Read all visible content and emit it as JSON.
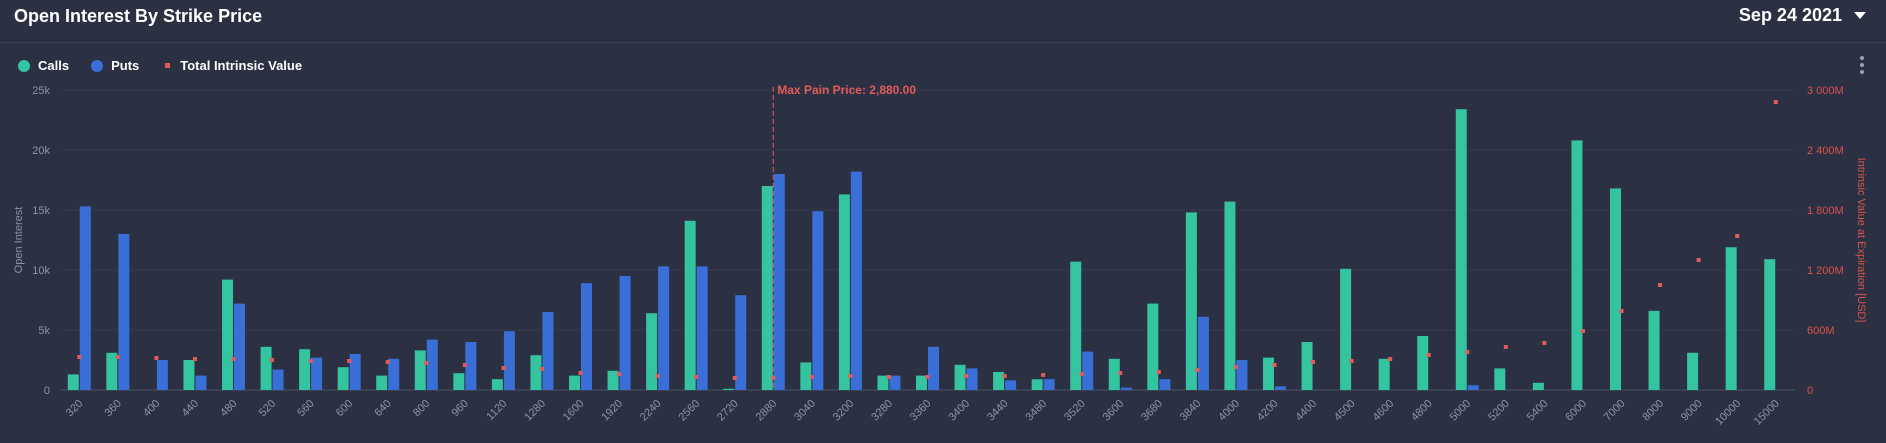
{
  "header": {
    "title": "Open Interest By Strike Price",
    "expiry_selected": "Sep 24 2021"
  },
  "legend": {
    "calls": "Calls",
    "puts": "Puts",
    "intrinsic": "Total Intrinsic Value"
  },
  "colors": {
    "calls": "#35c4a0",
    "puts": "#3a6fd8",
    "intrinsic": "#e35a5a",
    "max_pain": "#e35a5a"
  },
  "chart_data": {
    "type": "bar",
    "categories": [
      "320",
      "360",
      "400",
      "440",
      "480",
      "520",
      "560",
      "600",
      "640",
      "800",
      "960",
      "1120",
      "1280",
      "1600",
      "1920",
      "2240",
      "2560",
      "2720",
      "2880",
      "3040",
      "3200",
      "3280",
      "3360",
      "3400",
      "3440",
      "3480",
      "3520",
      "3600",
      "3680",
      "3840",
      "4000",
      "4200",
      "4400",
      "4500",
      "4600",
      "4800",
      "5000",
      "5200",
      "5400",
      "6000",
      "7000",
      "8000",
      "9000",
      "10000",
      "15000"
    ],
    "series": [
      {
        "name": "Calls",
        "axis": "left",
        "values": [
          1300,
          3100,
          0,
          2500,
          9200,
          3600,
          3400,
          1900,
          1200,
          3300,
          1400,
          900,
          2900,
          1200,
          1600,
          6400,
          14100,
          100,
          17000,
          2300,
          16300,
          1200,
          1200,
          2100,
          1500,
          900,
          10700,
          2600,
          7200,
          14800,
          15700,
          2700,
          4000,
          10100,
          2600,
          4500,
          23400,
          1800,
          600,
          20800,
          16800,
          6600,
          3100,
          11900,
          10900
        ]
      },
      {
        "name": "Puts",
        "axis": "left",
        "values": [
          15300,
          13000,
          2500,
          1200,
          7200,
          1700,
          2700,
          3000,
          2600,
          4200,
          4000,
          4900,
          6500,
          8900,
          9500,
          10300,
          10300,
          7900,
          18000,
          14900,
          18200,
          1200,
          3600,
          1800,
          800,
          900,
          3200,
          200,
          900,
          6100,
          2500,
          300,
          0,
          0,
          0,
          0,
          400,
          0,
          0,
          0,
          0,
          0,
          0,
          0,
          0
        ]
      },
      {
        "name": "Total Intrinsic Value",
        "axis": "right",
        "type": "scatter",
        "values": [
          330,
          330,
          320,
          310,
          310,
          300,
          290,
          290,
          280,
          270,
          250,
          220,
          210,
          170,
          160,
          140,
          130,
          120,
          120,
          130,
          140,
          130,
          130,
          140,
          140,
          150,
          160,
          170,
          180,
          200,
          230,
          250,
          280,
          290,
          310,
          350,
          380,
          430,
          470,
          590,
          790,
          1050,
          1300,
          1540,
          2880
        ]
      }
    ],
    "y_left": {
      "label": "Open Interest",
      "ticks": [
        "0",
        "5k",
        "10k",
        "15k",
        "20k",
        "25k"
      ],
      "range": [
        0,
        25000
      ]
    },
    "y_right": {
      "label": "Intrinsic Value at Expiration [USD]",
      "ticks": [
        "0",
        "600M",
        "1 200M",
        "1 800M",
        "2 400M",
        "3 000M"
      ],
      "range": [
        0,
        3000
      ],
      "unit": "M USD"
    },
    "annotation": {
      "label": "Max Pain Price: 2,880.00",
      "category": "2880"
    },
    "grid": true,
    "legend_position": "top-left"
  }
}
